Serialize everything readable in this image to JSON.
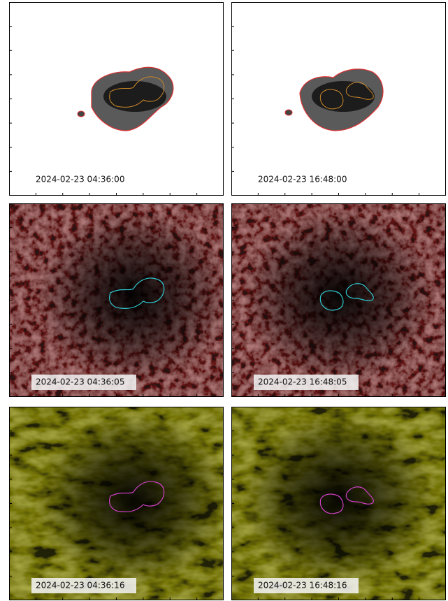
{
  "panels": [
    {
      "timestamp": "2024-02-23 04:36:00"
    },
    {
      "timestamp": "2024-02-23 16:48:00"
    },
    {
      "timestamp": "2024-02-23 04:36:05"
    },
    {
      "timestamp": "2024-02-23 16:48:05"
    },
    {
      "timestamp": "2024-02-23 04:36:16"
    },
    {
      "timestamp": "2024-02-23 16:48:16"
    }
  ]
}
